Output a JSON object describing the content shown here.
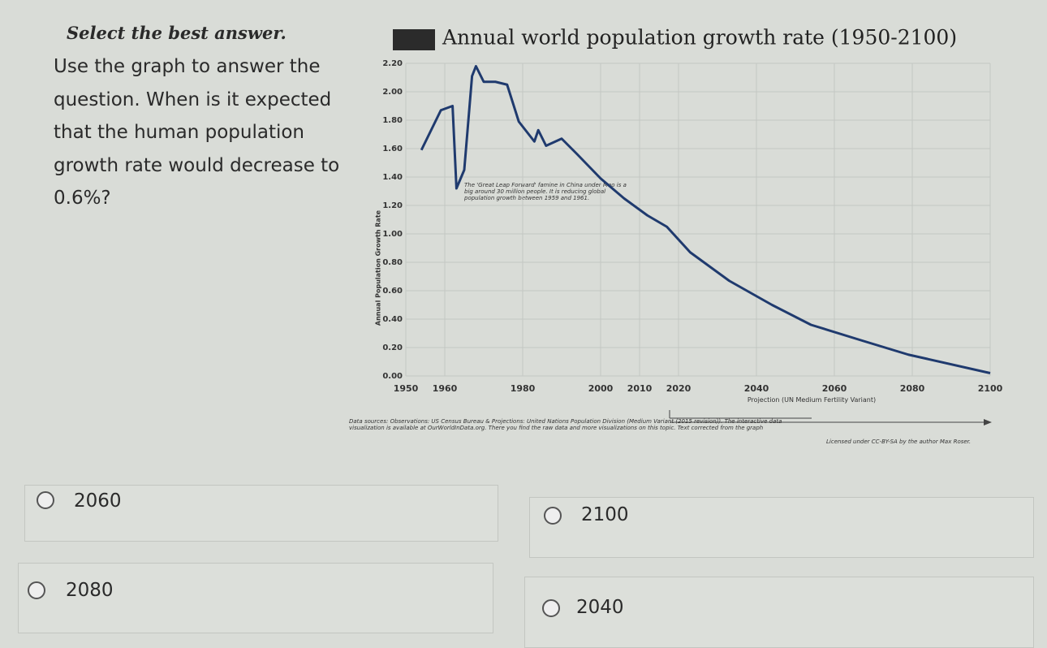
{
  "instruction": "Select the best answer.",
  "question": "Use the graph to answer the question. When is it expected that the human population growth rate would decrease to 0.6%?",
  "chart_data": {
    "type": "line",
    "title": "Annual world population growth rate (1950-2100)",
    "y_label": "Annual Population Growth Rate",
    "annotation": "The 'Great Leap Forward' famine in China under Mao is a big around 30 million people. It is reducing global population growth between 1959 and 1961.",
    "projection_label": "Projection (UN Medium Fertility Variant)",
    "sources": "Data sources: Observations: US Census Bureau & Projections: United Nations Population Division (Medium Variant (2015 revision)). The interactive data visualization is available at OurWorldInData.org. There you find the raw data and more visualizations on this topic. Text corrected from the graph",
    "license": "Licensed under CC-BY-SA by the author Max Roser.",
    "color": "#1f3a6e",
    "x": [
      1954,
      1959,
      1962,
      1963,
      1965,
      1967,
      1968,
      1970,
      1973,
      1976,
      1979,
      1983,
      1984,
      1986,
      1990,
      1994,
      2000,
      2006,
      2012,
      2017,
      2023,
      2033,
      2044,
      2054,
      2067,
      2079,
      2100
    ],
    "values": [
      1.59,
      1.87,
      1.9,
      1.32,
      1.45,
      2.11,
      2.18,
      2.07,
      2.07,
      2.05,
      1.79,
      1.65,
      1.73,
      1.62,
      1.67,
      1.56,
      1.39,
      1.25,
      1.13,
      1.05,
      0.87,
      0.67,
      0.5,
      0.36,
      0.25,
      0.15,
      0.02
    ],
    "xlim": [
      1950,
      2100
    ],
    "xticks": [
      1950,
      1960,
      1980,
      2000,
      2010,
      2020,
      2040,
      2060,
      2080,
      2100
    ],
    "ylim": [
      0,
      2.2
    ],
    "yticks": [
      {
        "value": 0,
        "label": "0.00"
      },
      {
        "value": 0.2,
        "label": "0.20"
      },
      {
        "value": 0.4,
        "label": "0.40"
      },
      {
        "value": 0.6,
        "label": "0.60"
      },
      {
        "value": 0.8,
        "label": "0.80"
      },
      {
        "value": 1,
        "label": "1.00"
      },
      {
        "value": 1.2,
        "label": "1.20"
      },
      {
        "value": 1.4,
        "label": "1.40"
      },
      {
        "value": 1.6,
        "label": "1.60"
      },
      {
        "value": 1.8,
        "label": "1.80"
      },
      {
        "value": 2,
        "label": "2.00"
      },
      {
        "value": 2.2,
        "label": "2.20"
      }
    ],
    "grid": true
  },
  "options": [
    "2060",
    "2100",
    "2080",
    "2040"
  ]
}
